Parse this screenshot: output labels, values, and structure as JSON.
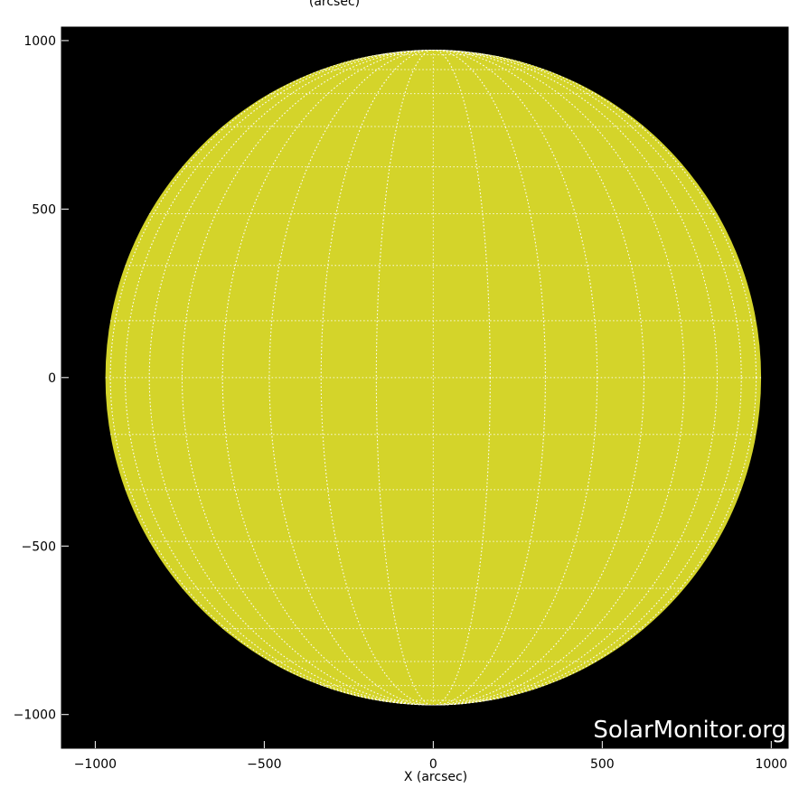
{
  "chart_data": {
    "type": "image",
    "title_partial": "(arcsec)",
    "xlabel": "X (arcsec)",
    "ylabel": "",
    "xlim": [
      -1100,
      1050
    ],
    "ylim": [
      -1100,
      1040
    ],
    "xticks": [
      -1000,
      -500,
      0,
      500,
      1000
    ],
    "yticks": [
      -1000,
      -500,
      0,
      500,
      1000
    ],
    "xtick_labels": [
      "−1000",
      "−500",
      "0",
      "500",
      "1000"
    ],
    "ytick_labels": [
      "−1000",
      "−500",
      "0",
      "500",
      "1000"
    ],
    "solar_radius_arcsec": 970,
    "grid_spacing_deg": 10,
    "disk_color": "#d4d42a",
    "background_color": "#000000",
    "grid_color": "#ffffff",
    "watermark": "SolarMonitor.org"
  }
}
